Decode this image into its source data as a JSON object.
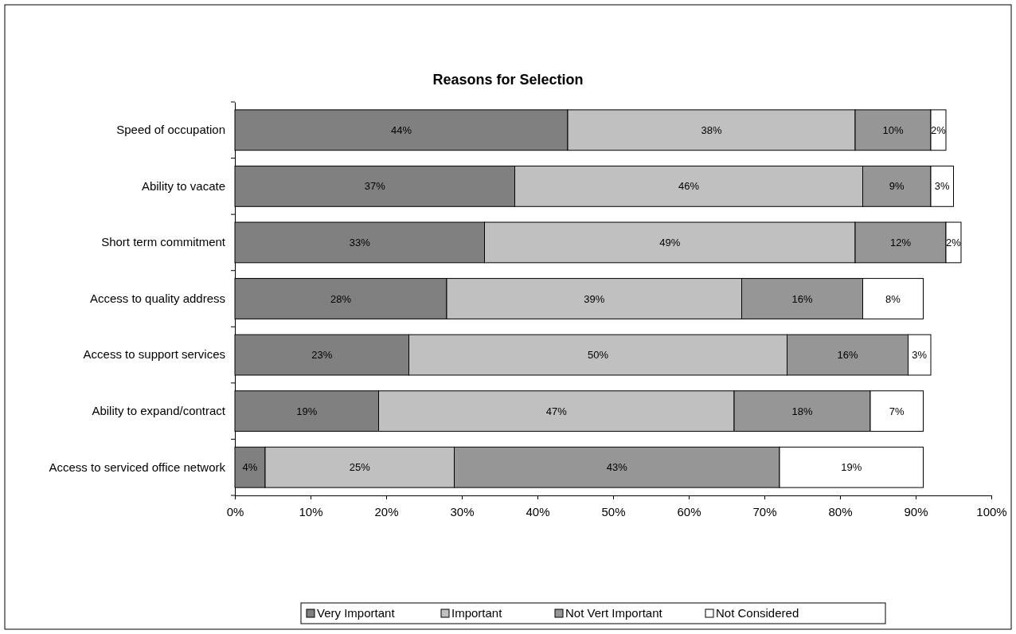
{
  "chart_data": {
    "type": "bar",
    "orientation": "horizontal",
    "stacked": true,
    "title": "Reasons for Selection",
    "categories": [
      "Speed of occupation",
      "Ability to vacate",
      "Short term commitment",
      "Access to quality address",
      "Access to support services",
      "Ability to expand/contract",
      "Access to serviced office network"
    ],
    "series": [
      {
        "name": "Very Important",
        "color": "#808080",
        "values": [
          44,
          37,
          33,
          28,
          23,
          19,
          4
        ],
        "value_labels": [
          "44%",
          "37%",
          "33%",
          "28%",
          "23%",
          "19%",
          "4%"
        ]
      },
      {
        "name": "Important",
        "color": "#c0c0c0",
        "values": [
          38,
          46,
          49,
          39,
          50,
          47,
          25
        ],
        "value_labels": [
          "38%",
          "46%",
          "49%",
          "39%",
          "50%",
          "47%",
          "25%"
        ]
      },
      {
        "name": "Not Vert Important",
        "color": "#969696",
        "values": [
          10,
          9,
          12,
          16,
          16,
          18,
          43
        ],
        "value_labels": [
          "10%",
          "9%",
          "12%",
          "16%",
          "16%",
          "18%",
          "43%"
        ]
      },
      {
        "name": "Not Considered",
        "color": "#ffffff",
        "values": [
          2,
          3,
          2,
          8,
          3,
          7,
          19
        ],
        "value_labels": [
          "2%",
          "3%",
          "2%",
          "8%",
          "3%",
          "7%",
          "19%"
        ]
      }
    ],
    "xlim": [
      0,
      100
    ],
    "xticks": [
      {
        "value": 0,
        "label": "0%"
      },
      {
        "value": 10,
        "label": "10%"
      },
      {
        "value": 20,
        "label": "20%"
      },
      {
        "value": 30,
        "label": "30%"
      },
      {
        "value": 40,
        "label": "40%"
      },
      {
        "value": 50,
        "label": "50%"
      },
      {
        "value": 60,
        "label": "60%"
      },
      {
        "value": 70,
        "label": "70%"
      },
      {
        "value": 80,
        "label": "80%"
      },
      {
        "value": 90,
        "label": "90%"
      },
      {
        "value": 100,
        "label": "100%"
      }
    ],
    "legend": "bottom"
  }
}
